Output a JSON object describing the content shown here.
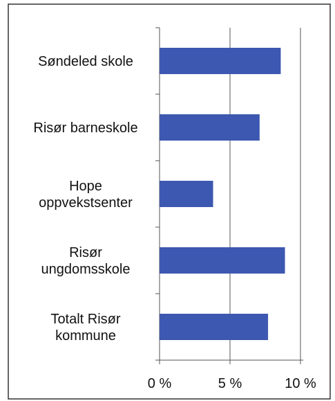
{
  "chart_data": {
    "type": "barh",
    "categories": [
      "Søndeled skole",
      "Risør barneskole",
      "Hope\noppvekstsenter",
      "Risør\nungdomsskole",
      "Totalt Risør\nkommune"
    ],
    "values": [
      8.6,
      7.1,
      3.8,
      8.9,
      7.7
    ],
    "color": "#3d58b0",
    "xlim": [
      0,
      10.2
    ],
    "xticks": [
      {
        "value": 0,
        "label": "0 %"
      },
      {
        "value": 5,
        "label": "5 %"
      },
      {
        "value": 10,
        "label": "10 %"
      }
    ],
    "grid": true
  }
}
